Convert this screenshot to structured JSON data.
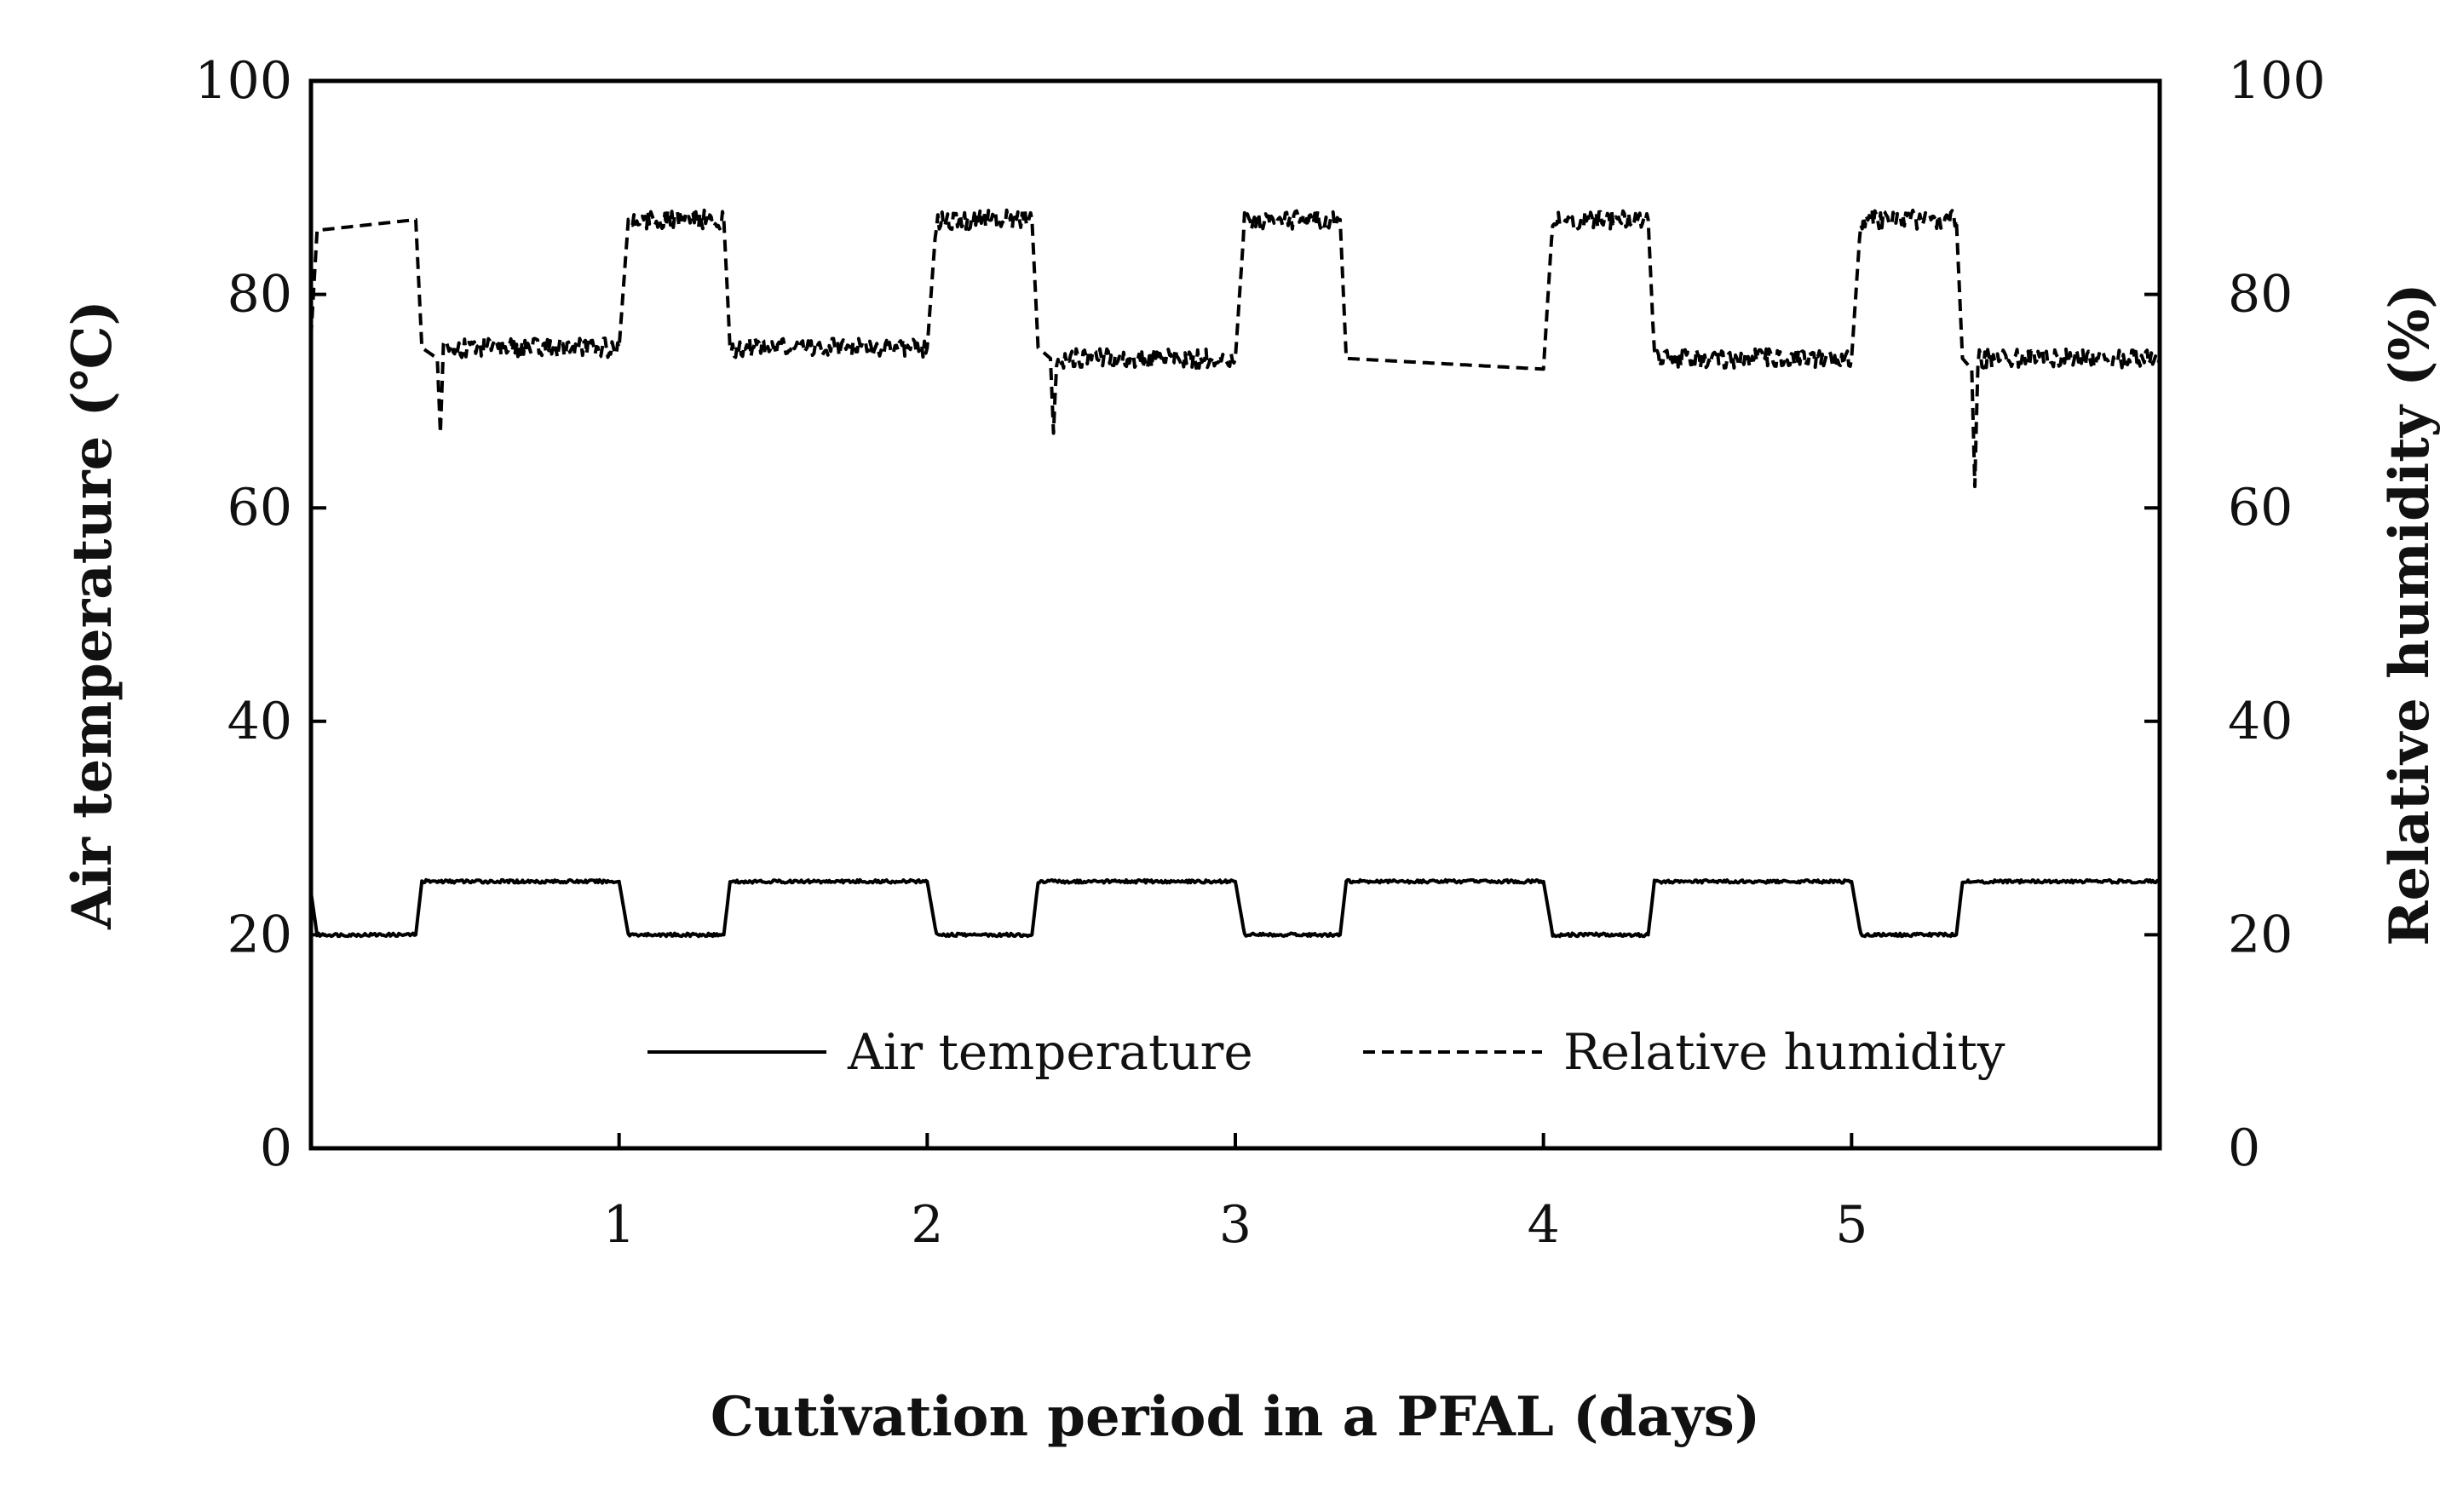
{
  "chart_data": {
    "type": "line",
    "title": "",
    "xlabel": "Cutivation period in a PFAL (days)",
    "ylabel": "Air temperature (℃)",
    "y2label": "Relative humidity (%)",
    "xlim": [
      0,
      6
    ],
    "ylim": [
      0,
      100
    ],
    "y2lim": [
      0,
      100
    ],
    "x_ticks": [
      1,
      2,
      3,
      4,
      5
    ],
    "x_tick_labels": [
      "1",
      "2",
      "3",
      "4",
      "5"
    ],
    "y_ticks": [
      0,
      20,
      40,
      60,
      80,
      100
    ],
    "y_tick_labels": [
      "0",
      "20",
      "40",
      "60",
      "80",
      "100"
    ],
    "y2_ticks": [
      0,
      20,
      40,
      60,
      80,
      100
    ],
    "y2_tick_labels": [
      "0",
      "20",
      "40",
      "60",
      "80",
      "100"
    ],
    "grid": false,
    "legend_position": "bottom-center",
    "series": [
      {
        "name": "Air temperature",
        "style": "solid",
        "color": "#000000",
        "x": [
          0,
          0.02,
          0.34,
          0.36,
          1.0,
          1.03,
          1.34,
          1.36,
          2.0,
          2.03,
          2.34,
          2.36,
          3.0,
          3.03,
          3.34,
          3.36,
          4.0,
          4.03,
          4.34,
          4.36,
          5.0,
          5.03,
          5.34,
          5.36,
          6.0
        ],
        "y": [
          24,
          20,
          20,
          25,
          25,
          20,
          20,
          25,
          25,
          20,
          20,
          25,
          25,
          20,
          20,
          25,
          25,
          20,
          20,
          25,
          25,
          20,
          20,
          25,
          25
        ]
      },
      {
        "name": "Relative humidity",
        "style": "dashed",
        "color": "#000000",
        "x": [
          0,
          0.02,
          0.34,
          0.36,
          0.41,
          0.42,
          0.43,
          1.0,
          1.03,
          1.34,
          1.36,
          2.0,
          2.03,
          2.34,
          2.36,
          2.4,
          2.41,
          2.42,
          3.0,
          3.03,
          3.34,
          3.36,
          4.0,
          4.03,
          4.34,
          4.36,
          5.0,
          5.03,
          5.34,
          5.36,
          5.39,
          5.4,
          5.41,
          6.0
        ],
        "y": [
          76,
          86,
          87,
          75,
          74,
          67,
          75,
          75,
          87,
          87,
          75,
          75,
          87,
          87,
          75,
          74,
          67,
          74,
          74,
          87,
          87,
          74,
          73,
          87,
          87,
          74,
          74,
          87,
          87,
          74,
          73,
          62,
          74,
          74
        ]
      }
    ],
    "legend": [
      "Air temperature",
      "Relative humidity"
    ]
  }
}
